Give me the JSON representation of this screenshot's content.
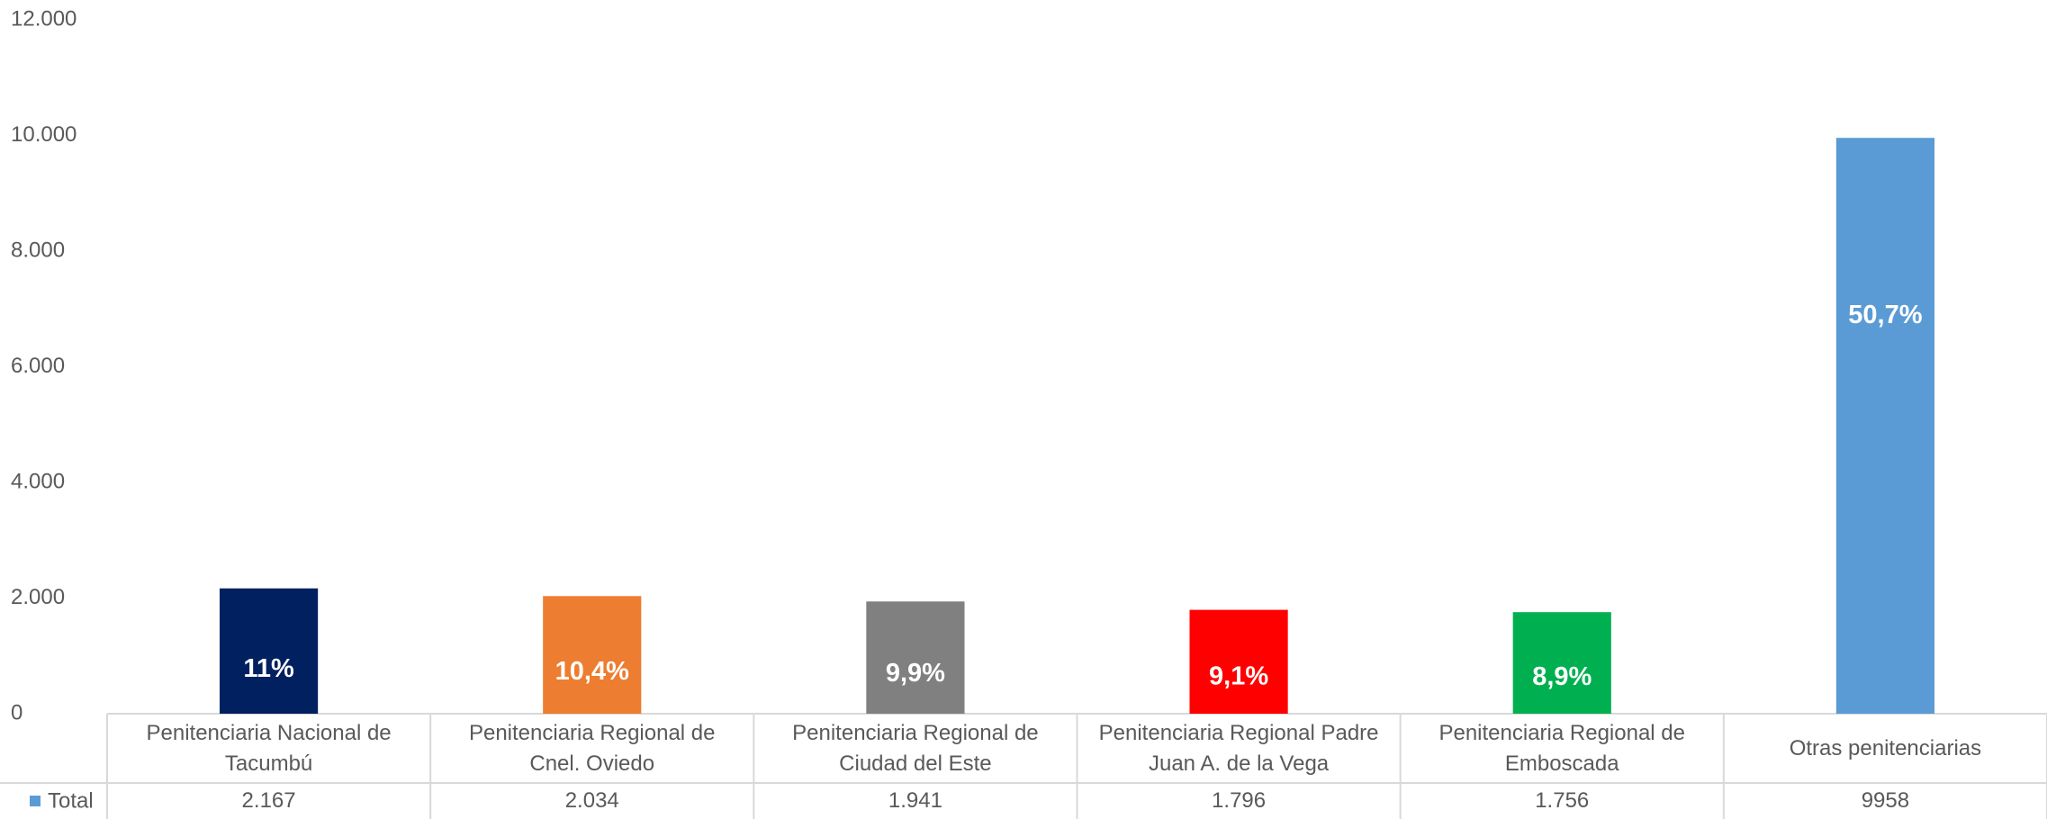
{
  "chart_data": {
    "type": "bar",
    "categories": [
      "Penitenciaria Nacional de Tacumbú",
      "Penitenciaria Regional de Cnel. Oviedo",
      "Penitenciaria Regional de Ciudad del Este",
      "Penitenciaria Regional Padre Juan A. de la Vega",
      "Penitenciaria Regional de Emboscada",
      "Otras penitenciarias"
    ],
    "series": [
      {
        "name": "Total",
        "color": "#5b9bd5",
        "colors": [
          "#002060",
          "#ed7d31",
          "#808080",
          "#ff0000",
          "#00b050",
          "#5b9bd5"
        ],
        "values": [
          2167,
          2034,
          1941,
          1796,
          1756,
          9958
        ],
        "value_labels": [
          "2.167",
          "2.034",
          "1.941",
          "1.796",
          "1.756",
          "9958"
        ],
        "shares": [
          11,
          10.4,
          9.9,
          9.1,
          8.9,
          50.7
        ],
        "share_labels": [
          "11%",
          "10,4%",
          "9,9%",
          "9,1%",
          "8,9%",
          "50,7%"
        ]
      }
    ],
    "ylim": [
      0,
      12000
    ],
    "yticks": [
      0,
      {
        "value": 2000,
        "label": "2.000"
      },
      {
        "value": 4000,
        "label": "4.000"
      },
      {
        "value": 6000,
        "label": "6.000"
      },
      {
        "value": 8000,
        "label": "8.000"
      },
      {
        "value": 10000,
        "label": "10.000"
      },
      {
        "value": 12000,
        "label": "12.000"
      }
    ],
    "grid": false,
    "data_table": true
  }
}
